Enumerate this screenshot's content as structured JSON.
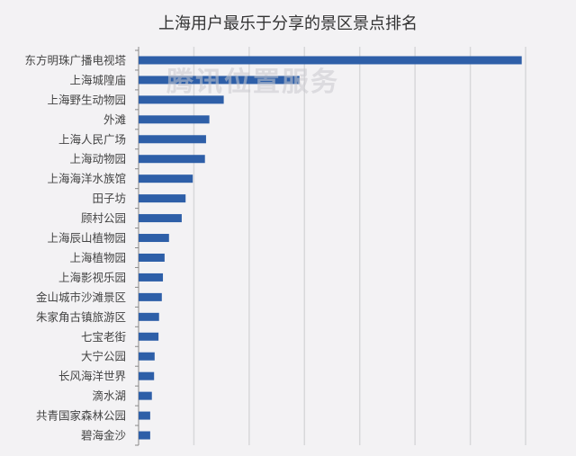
{
  "chart_data": {
    "type": "bar",
    "orientation": "horizontal",
    "title": "上海用户最乐于分享的景区景点排名",
    "categories": [
      "东方明珠广播电视塔",
      "上海城隍庙",
      "上海野生动物园",
      "外滩",
      "上海人民广场",
      "上海动物园",
      "上海海洋水族馆",
      "田子坊",
      "顾村公园",
      "上海辰山植物园",
      "上海植物园",
      "上海影视乐园",
      "金山城市沙滩景区",
      "朱家角古镇旅游区",
      "七宝老街",
      "大宁公园",
      "长风海洋世界",
      "滴水湖",
      "共青国家森林公园",
      "碧海金沙"
    ],
    "values": [
      6.93,
      2.91,
      1.54,
      1.28,
      1.22,
      1.2,
      0.98,
      0.85,
      0.78,
      0.55,
      0.47,
      0.44,
      0.42,
      0.37,
      0.36,
      0.29,
      0.28,
      0.24,
      0.21,
      0.21
    ],
    "xlim": [
      0,
      7
    ],
    "x_tick_labels_shown": false,
    "grid": "vertical",
    "legend": "none",
    "bar_color": "#2e5fa8",
    "watermark": "腾讯位置服务"
  }
}
